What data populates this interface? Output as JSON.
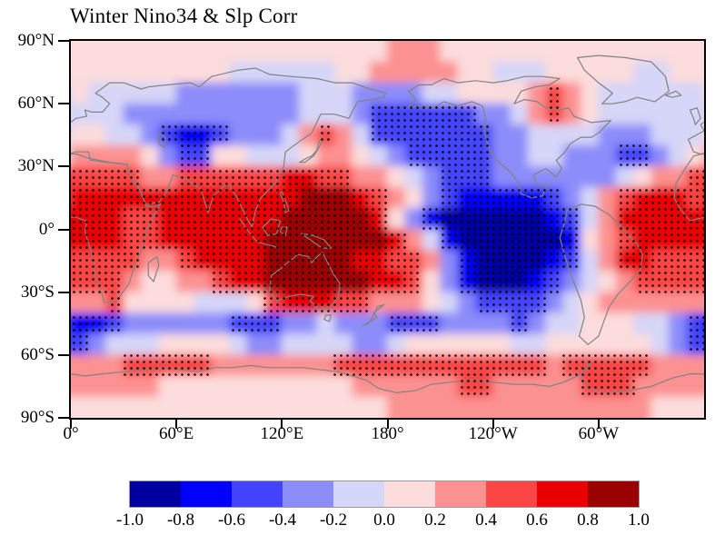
{
  "figure": {
    "title": "Winter Nino34 & Slp Corr"
  },
  "chart_data": {
    "type": "heatmap",
    "subtype": "filled-contour-correlation-map-with-stippling",
    "title": "Winter Nino34 & Slp Corr",
    "projection": "equirectangular, longitude 0E-360E left to right, latitude 90N-90S top to bottom",
    "x_axis": {
      "tick_labels": [
        "0°",
        "60°E",
        "120°E",
        "180°",
        "120°W",
        "60°W"
      ],
      "tick_lons_deg_east": [
        0,
        60,
        120,
        180,
        240,
        300
      ],
      "range_deg_east": [
        0,
        360
      ]
    },
    "y_axis": {
      "tick_labels": [
        "90°N",
        "60°N",
        "30°N",
        "0°",
        "30°S",
        "60°S",
        "90°S"
      ],
      "tick_lats_deg": [
        90,
        60,
        30,
        0,
        -30,
        -60,
        -90
      ]
    },
    "colorbar": {
      "tick_labels": [
        "-1.0",
        "-0.8",
        "-0.6",
        "-0.4",
        "-0.2",
        "0.0",
        "0.2",
        "0.4",
        "0.6",
        "0.8",
        "1.0"
      ],
      "colors": [
        "#0000a0",
        "#0000ff",
        "#4444ff",
        "#8c8cfa",
        "#d6d6f8",
        "#fcdcdc",
        "#fc9191",
        "#fc4545",
        "#ea0000",
        "#9a0000"
      ]
    },
    "grid": {
      "description": "correlation field binned to colorbar classes; digit d means correlation in [-1.0+0.2d, -0.8+0.2d]; 18 rows = lat 90N..90S in 10-deg bands, 36 cols = lon 0..360E in 10-deg bands",
      "bin_centers": [
        -0.9,
        -0.7,
        -0.5,
        -0.3,
        -0.1,
        0.1,
        0.3,
        0.5,
        0.7,
        0.9
      ],
      "levels": [
        "555555555555555555666555555555555555",
        "555555555444444556666655444555554455",
        "544444333333344433334455556765444444",
        "444333333333344432222223346765444444",
        "554432112333467642222222334444333444",
        "666653225544456654322222334433322345",
        "777766777777887766543222333333345667",
        "888888888888899987653211111234678887",
        "888778888888999998531000000124688888",
        "888778888889999999864100000015678888",
        "777766788889999988776310000124688777",
        "777655667889999998875310001234567777",
        "667555544457888776665432222345666666",
        "112333333222334333222333323445554432",
        "234445555433444433455555544555555432",
        "666777776666666777777777777677777666",
        "666665555555555566666677666667776666",
        "555555555555555555666666666666666555"
      ]
    },
    "stipple": {
      "rule": "black dots where |correlation| >= 0.4 (classes 0,1,2,7,8,9)",
      "dot_color": "#000000",
      "dot_spacing_px": 7
    },
    "coastline_color": "#828282",
    "coastlines": {
      "eurasia": [
        [
          -9,
          43
        ],
        [
          0,
          47
        ],
        [
          -2,
          50
        ],
        [
          3,
          53
        ],
        [
          9,
          54
        ],
        [
          8,
          57
        ],
        [
          12,
          56
        ],
        [
          18,
          56
        ],
        [
          22,
          60
        ],
        [
          18,
          63
        ],
        [
          14,
          65
        ],
        [
          22,
          70
        ],
        [
          30,
          70
        ],
        [
          40,
          67
        ],
        [
          44,
          68
        ],
        [
          55,
          69
        ],
        [
          68,
          70
        ],
        [
          73,
          68
        ],
        [
          80,
          73
        ],
        [
          95,
          76
        ],
        [
          105,
          77
        ],
        [
          113,
          74
        ],
        [
          125,
          73
        ],
        [
          140,
          72
        ],
        [
          150,
          70
        ],
        [
          160,
          70
        ],
        [
          170,
          67
        ],
        [
          179,
          65
        ],
        [
          178,
          63
        ],
        [
          163,
          61
        ],
        [
          158,
          53
        ],
        [
          150,
          55
        ],
        [
          142,
          55
        ],
        [
          137,
          46
        ],
        [
          130,
          42
        ],
        [
          122,
          37
        ],
        [
          121,
          30
        ],
        [
          116,
          22
        ],
        [
          108,
          15
        ],
        [
          105,
          9
        ],
        [
          103,
          1
        ],
        [
          99,
          7
        ],
        [
          94,
          16
        ],
        [
          89,
          22
        ],
        [
          81,
          16
        ],
        [
          78,
          8
        ],
        [
          74,
          19
        ],
        [
          66,
          24
        ],
        [
          58,
          26
        ],
        [
          54,
          17
        ],
        [
          50,
          13
        ],
        [
          44,
          12
        ],
        [
          43,
          11
        ],
        [
          39,
          19
        ],
        [
          33,
          27
        ],
        [
          32,
          31
        ],
        [
          22,
          32
        ],
        [
          10,
          34
        ],
        [
          3,
          36
        ],
        [
          -2,
          36
        ],
        [
          -6,
          37
        ],
        [
          -9,
          43
        ]
      ],
      "africa": [
        [
          -6,
          35
        ],
        [
          3,
          37
        ],
        [
          10,
          37
        ],
        [
          11,
          33
        ],
        [
          20,
          32
        ],
        [
          32,
          31
        ],
        [
          33,
          27
        ],
        [
          39,
          19
        ],
        [
          43,
          11
        ],
        [
          48,
          11
        ],
        [
          51,
          12
        ],
        [
          44,
          2
        ],
        [
          40,
          -10
        ],
        [
          36,
          -18
        ],
        [
          33,
          -26
        ],
        [
          26,
          -34
        ],
        [
          19,
          -35
        ],
        [
          17,
          -29
        ],
        [
          14,
          -23
        ],
        [
          12,
          -12
        ],
        [
          8,
          -1
        ],
        [
          9,
          4
        ],
        [
          2,
          6
        ],
        [
          -4,
          5
        ],
        [
          -8,
          4
        ],
        [
          -13,
          9
        ],
        [
          -17,
          15
        ],
        [
          -16,
          22
        ],
        [
          -10,
          30
        ],
        [
          -6,
          35
        ]
      ],
      "madagascar": [
        [
          44,
          -16
        ],
        [
          49,
          -13
        ],
        [
          50,
          -17
        ],
        [
          47,
          -25
        ],
        [
          44,
          -22
        ],
        [
          44,
          -16
        ]
      ],
      "greenland": [
        [
          302,
          60
        ],
        [
          308,
          65
        ],
        [
          300,
          70
        ],
        [
          292,
          76
        ],
        [
          288,
          82
        ],
        [
          300,
          83
        ],
        [
          315,
          82
        ],
        [
          330,
          80
        ],
        [
          338,
          73
        ],
        [
          340,
          66
        ],
        [
          332,
          61
        ],
        [
          322,
          63
        ],
        [
          315,
          61
        ],
        [
          308,
          60
        ],
        [
          302,
          60
        ]
      ],
      "north_america": [
        [
          192,
          66
        ],
        [
          196,
          62
        ],
        [
          192,
          58
        ],
        [
          200,
          59
        ],
        [
          206,
          58
        ],
        [
          212,
          61
        ],
        [
          220,
          59
        ],
        [
          228,
          61
        ],
        [
          234,
          59
        ],
        [
          236,
          52
        ],
        [
          235,
          47
        ],
        [
          237,
          40
        ],
        [
          242,
          33
        ],
        [
          249,
          28
        ],
        [
          254,
          23
        ],
        [
          256,
          17
        ],
        [
          262,
          15
        ],
        [
          268,
          16
        ],
        [
          271,
          21
        ],
        [
          265,
          21
        ],
        [
          263,
          26
        ],
        [
          270,
          29
        ],
        [
          276,
          25
        ],
        [
          279,
          29
        ],
        [
          276,
          33
        ],
        [
          281,
          37
        ],
        [
          284,
          41
        ],
        [
          290,
          44
        ],
        [
          296,
          44
        ],
        [
          300,
          46
        ],
        [
          307,
          52
        ],
        [
          296,
          51
        ],
        [
          286,
          54
        ],
        [
          283,
          58
        ],
        [
          278,
          57
        ],
        [
          270,
          58
        ],
        [
          265,
          61
        ],
        [
          258,
          62
        ],
        [
          252,
          60
        ],
        [
          256,
          66
        ],
        [
          264,
          68
        ],
        [
          272,
          69
        ],
        [
          278,
          72
        ],
        [
          268,
          73
        ],
        [
          258,
          73
        ],
        [
          248,
          71
        ],
        [
          240,
          70
        ],
        [
          230,
          71
        ],
        [
          220,
          70
        ],
        [
          212,
          72
        ],
        [
          205,
          69
        ],
        [
          198,
          69
        ],
        [
          192,
          66
        ]
      ],
      "south_america": [
        [
          282,
          9
        ],
        [
          290,
          12
        ],
        [
          298,
          11
        ],
        [
          306,
          7
        ],
        [
          312,
          2
        ],
        [
          317,
          -3
        ],
        [
          322,
          -7
        ],
        [
          325,
          -12
        ],
        [
          324,
          -19
        ],
        [
          318,
          -25
        ],
        [
          311,
          -31
        ],
        [
          306,
          -37
        ],
        [
          303,
          -44
        ],
        [
          300,
          -51
        ],
        [
          294,
          -55
        ],
        [
          289,
          -51
        ],
        [
          292,
          -42
        ],
        [
          290,
          -34
        ],
        [
          284,
          -21
        ],
        [
          281,
          -13
        ],
        [
          278,
          -4
        ],
        [
          281,
          4
        ],
        [
          282,
          9
        ]
      ],
      "australia": [
        [
          114,
          -22
        ],
        [
          119,
          -19
        ],
        [
          123,
          -16
        ],
        [
          129,
          -12
        ],
        [
          135,
          -13
        ],
        [
          137,
          -16
        ],
        [
          140,
          -13
        ],
        [
          143,
          -11
        ],
        [
          146,
          -16
        ],
        [
          149,
          -21
        ],
        [
          153,
          -26
        ],
        [
          152,
          -32
        ],
        [
          147,
          -38
        ],
        [
          141,
          -38
        ],
        [
          136,
          -34
        ],
        [
          138,
          -32
        ],
        [
          131,
          -31
        ],
        [
          124,
          -32
        ],
        [
          117,
          -34
        ],
        [
          113,
          -29
        ],
        [
          114,
          -22
        ]
      ],
      "tasmania": [
        [
          145,
          -41
        ],
        [
          148,
          -41
        ],
        [
          147,
          -44
        ],
        [
          144,
          -43
        ],
        [
          145,
          -41
        ]
      ],
      "new_zealand": [
        [
          166,
          -46
        ],
        [
          170,
          -44
        ],
        [
          174,
          -42
        ],
        [
          172,
          -40
        ],
        [
          175,
          -38
        ],
        [
          178,
          -36
        ],
        [
          174,
          -37
        ],
        [
          173,
          -40
        ],
        [
          169,
          -45
        ],
        [
          166,
          -46
        ]
      ],
      "japan": [
        [
          130,
          32
        ],
        [
          134,
          34
        ],
        [
          137,
          35
        ],
        [
          140,
          38
        ],
        [
          141,
          42
        ],
        [
          144,
          44
        ],
        [
          141,
          39
        ],
        [
          138,
          35
        ],
        [
          133,
          32
        ],
        [
          130,
          32
        ]
      ],
      "borneo": [
        [
          109,
          1
        ],
        [
          114,
          5
        ],
        [
          119,
          4
        ],
        [
          117,
          -2
        ],
        [
          112,
          -3
        ],
        [
          109,
          1
        ]
      ],
      "new_guinea": [
        [
          131,
          -2
        ],
        [
          138,
          -3
        ],
        [
          144,
          -5
        ],
        [
          148,
          -9
        ],
        [
          143,
          -9
        ],
        [
          136,
          -5
        ],
        [
          131,
          -2
        ]
      ],
      "sumatra_java": [
        [
          96,
          5
        ],
        [
          101,
          -1
        ],
        [
          106,
          -6
        ],
        [
          110,
          -7
        ],
        [
          115,
          -8
        ],
        [
          118,
          -9
        ]
      ],
      "philippines": [
        [
          120,
          18
        ],
        [
          122,
          14
        ],
        [
          124,
          9
        ],
        [
          122,
          8
        ],
        [
          121,
          13
        ],
        [
          119,
          17
        ],
        [
          120,
          18
        ]
      ],
      "sulawesi": [
        [
          119,
          -1
        ],
        [
          122,
          -3
        ],
        [
          123,
          1
        ],
        [
          120,
          1
        ],
        [
          119,
          -1
        ]
      ],
      "uk": [
        [
          -5,
          50
        ],
        [
          -2,
          53
        ],
        [
          -4,
          58
        ],
        [
          -8,
          57
        ],
        [
          -6,
          53
        ],
        [
          -5,
          50
        ]
      ],
      "iceland": [
        [
          338,
          64
        ],
        [
          344,
          66
        ],
        [
          347,
          64
        ],
        [
          342,
          63
        ],
        [
          338,
          64
        ]
      ],
      "caspian": [
        [
          50,
          46
        ],
        [
          54,
          44
        ],
        [
          53,
          39
        ],
        [
          50,
          41
        ],
        [
          50,
          46
        ]
      ],
      "antarctica": [
        [
          0,
          -69
        ],
        [
          8,
          -70
        ],
        [
          18,
          -69
        ],
        [
          30,
          -68
        ],
        [
          42,
          -67
        ],
        [
          52,
          -66
        ],
        [
          62,
          -67
        ],
        [
          72,
          -68
        ],
        [
          82,
          -66
        ],
        [
          92,
          -66
        ],
        [
          102,
          -65
        ],
        [
          112,
          -66
        ],
        [
          122,
          -66
        ],
        [
          132,
          -66
        ],
        [
          142,
          -67
        ],
        [
          152,
          -68
        ],
        [
          160,
          -70
        ],
        [
          168,
          -72
        ],
        [
          175,
          -76
        ],
        [
          185,
          -78
        ],
        [
          196,
          -77
        ],
        [
          205,
          -74
        ],
        [
          215,
          -73
        ],
        [
          228,
          -72
        ],
        [
          240,
          -73
        ],
        [
          252,
          -74
        ],
        [
          262,
          -74
        ],
        [
          272,
          -75
        ],
        [
          280,
          -73
        ],
        [
          288,
          -70
        ],
        [
          293,
          -65
        ],
        [
          296,
          -63
        ],
        [
          293,
          -67
        ],
        [
          290,
          -72
        ],
        [
          295,
          -76
        ],
        [
          305,
          -78
        ],
        [
          318,
          -77
        ],
        [
          330,
          -75
        ],
        [
          342,
          -71
        ],
        [
          352,
          -69
        ],
        [
          360,
          -69
        ]
      ]
    }
  }
}
